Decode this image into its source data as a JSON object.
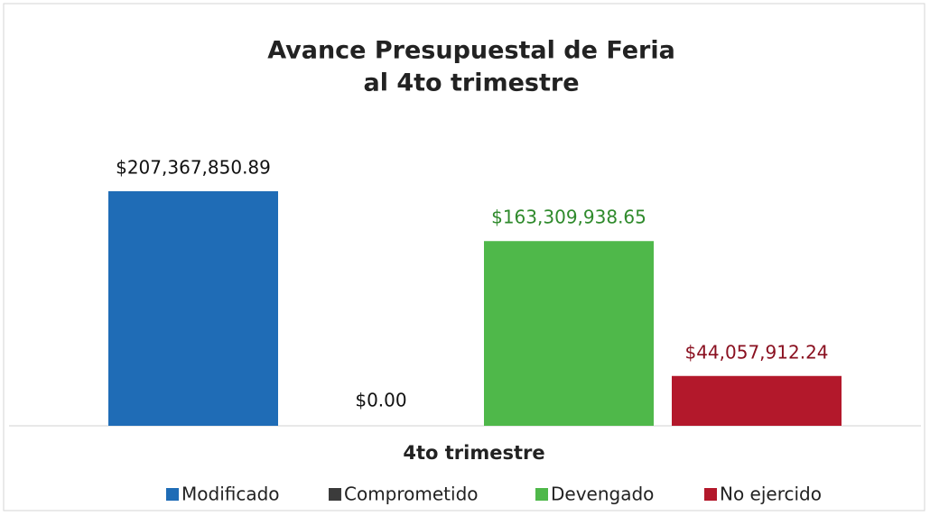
{
  "chart_data": {
    "type": "bar",
    "title": [
      "Avance Presupuestal de Feria",
      "al 4to trimestre"
    ],
    "categories": [
      "4to trimestre"
    ],
    "series": [
      {
        "name": "Modificado",
        "color": "#1f6cb6",
        "label_color": "#111111",
        "values": [
          207367850.89
        ],
        "value_labels": [
          "$207,367,850.89"
        ]
      },
      {
        "name": "Comprometido",
        "color": "#3b3b3b",
        "label_color": "#111111",
        "values": [
          0
        ],
        "value_labels": [
          "$0.00"
        ]
      },
      {
        "name": "Devengado",
        "color": "#4fb84a",
        "label_color": "#2f8a2c",
        "values": [
          163309938.65
        ],
        "value_labels": [
          "$163,309,938.65"
        ]
      },
      {
        "name": "No ejercido",
        "color": "#b3182b",
        "label_color": "#8a1020",
        "values": [
          44057912.24
        ],
        "value_labels": [
          "$44,057,912.24"
        ]
      }
    ]
  }
}
